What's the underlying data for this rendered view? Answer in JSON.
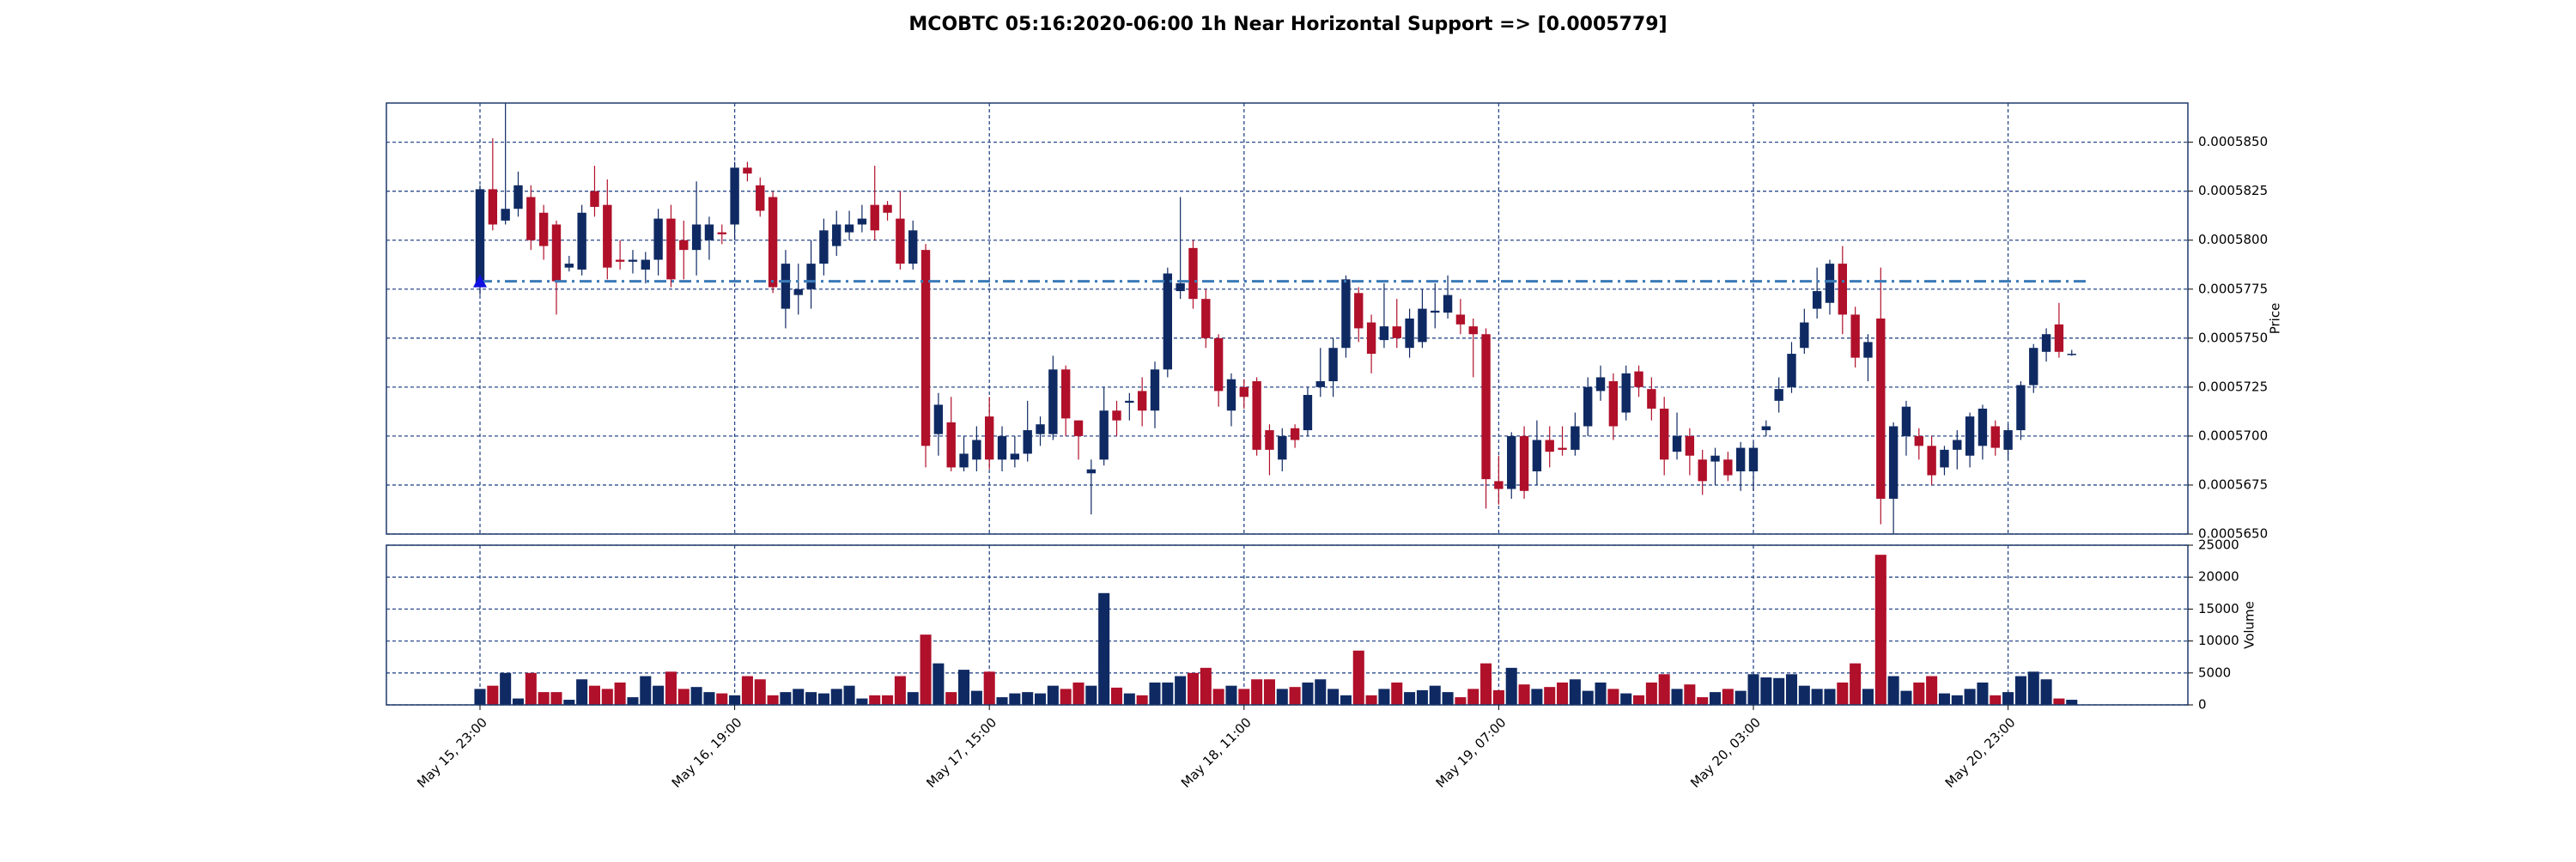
{
  "chart_data": {
    "type": "candlestick",
    "title": "MCOBTC 05:16:2020-06:00 1h Near Horizontal Support => [0.0005779]",
    "ylabel": "Price",
    "volume_label": "Volume",
    "support_level": 0.0005779,
    "up_color": "#0f2a63",
    "down_color": "#b0102a",
    "support_color": "#3b7ab8",
    "marker_color": "#1010e0",
    "grid_color": "#2b4a8a",
    "grid": true,
    "categories": [
      "May 15, 23:00",
      null,
      null,
      null,
      null,
      null,
      null,
      null,
      null,
      null,
      null,
      null,
      null,
      null,
      null,
      null,
      null,
      null,
      null,
      null,
      "May 16, 19:00",
      null,
      null,
      null,
      null,
      null,
      null,
      null,
      null,
      null,
      null,
      null,
      null,
      null,
      null,
      null,
      null,
      null,
      null,
      null,
      "May 17, 15:00",
      null,
      null,
      null,
      null,
      null,
      null,
      null,
      null,
      null,
      null,
      null,
      null,
      null,
      null,
      null,
      null,
      null,
      null,
      null,
      "May 18, 11:00",
      null,
      null,
      null,
      null,
      null,
      null,
      null,
      null,
      null,
      null,
      null,
      null,
      null,
      null,
      null,
      null,
      null,
      null,
      null,
      "May 19, 07:00",
      null,
      null,
      null,
      null,
      null,
      null,
      null,
      null,
      null,
      null,
      null,
      null,
      null,
      null,
      null,
      null,
      null,
      null,
      null,
      "May 20, 03:00",
      null,
      null,
      null,
      null,
      null,
      null,
      null,
      null,
      null,
      null,
      null,
      null,
      null,
      null,
      null,
      null,
      null,
      null,
      null,
      "May 20, 23:00",
      null,
      null,
      null,
      null,
      null
    ],
    "open": [
      0.0005776,
      0.0005826,
      0.000581,
      0.0005816,
      0.0005822,
      0.0005814,
      0.0005808,
      0.0005786,
      0.0005785,
      0.0005825,
      0.0005818,
      0.000579,
      0.0005789,
      0.0005785,
      0.000579,
      0.0005811,
      0.00058,
      0.0005795,
      0.00058,
      0.0005804,
      0.0005808,
      0.0005837,
      0.0005828,
      0.0005822,
      0.0005765,
      0.0005772,
      0.0005775,
      0.0005788,
      0.0005797,
      0.0005804,
      0.0005808,
      0.0005818,
      0.0005818,
      0.0005811,
      0.0005788,
      0.0005795,
      0.0005701,
      0.0005707,
      0.0005684,
      0.0005688,
      0.000571,
      0.0005688,
      0.0005688,
      0.0005691,
      0.0005701,
      0.0005701,
      0.0005734,
      0.0005708,
      0.0005681,
      0.0005688,
      0.0005713,
      0.0005717,
      0.0005723,
      0.0005713,
      0.0005734,
      0.0005774,
      0.0005796,
      0.000577,
      0.000575,
      0.0005713,
      0.0005725,
      0.0005728,
      0.0005703,
      0.0005688,
      0.0005704,
      0.0005703,
      0.0005725,
      0.0005728,
      0.0005745,
      0.0005773,
      0.0005758,
      0.0005749,
      0.0005756,
      0.0005745,
      0.0005748,
      0.0005763,
      0.0005763,
      0.0005762,
      0.0005756,
      0.0005752,
      0.0005677,
      0.0005673,
      0.00057,
      0.0005682,
      0.0005698,
      0.0005694,
      0.0005693,
      0.0005705,
      0.0005723,
      0.0005728,
      0.0005712,
      0.0005733,
      0.0005724,
      0.0005714,
      0.0005692,
      0.00057,
      0.0005688,
      0.0005687,
      0.0005688,
      0.0005682,
      0.0005682,
      0.0005703,
      0.0005718,
      0.0005725,
      0.0005745,
      0.0005765,
      0.0005768,
      0.0005788,
      0.0005762,
      0.000574,
      0.000576,
      0.0005668,
      0.00057,
      0.00057,
      0.0005695,
      0.0005684,
      0.0005693,
      0.000569,
      0.0005695,
      0.0005705,
      0.0005693,
      0.0005703,
      0.0005726,
      0.0005743,
      0.0005757,
      0.0005742
    ],
    "high": [
      0.0005828,
      0.0005852,
      0.000587,
      0.0005835,
      0.0005828,
      0.0005818,
      0.000581,
      0.0005792,
      0.0005818,
      0.0005838,
      0.0005831,
      0.00058,
      0.0005795,
      0.0005794,
      0.0005816,
      0.0005818,
      0.000581,
      0.000583,
      0.0005812,
      0.0005808,
      0.000584,
      0.000584,
      0.0005832,
      0.0005825,
      0.0005795,
      0.0005788,
      0.00058,
      0.0005811,
      0.0005815,
      0.0005815,
      0.0005818,
      0.0005838,
      0.000582,
      0.0005825,
      0.000581,
      0.0005798,
      0.0005722,
      0.000572,
      0.00057,
      0.0005705,
      0.000572,
      0.0005705,
      0.00057,
      0.0005718,
      0.000571,
      0.0005741,
      0.0005736,
      0.0005708,
      0.0005688,
      0.0005725,
      0.0005718,
      0.0005722,
      0.000573,
      0.0005738,
      0.0005786,
      0.0005822,
      0.00058,
      0.0005775,
      0.0005752,
      0.0005732,
      0.0005729,
      0.000573,
      0.0005706,
      0.0005704,
      0.0005706,
      0.0005725,
      0.0005745,
      0.000575,
      0.0005782,
      0.0005776,
      0.0005762,
      0.0005778,
      0.000577,
      0.0005765,
      0.0005775,
      0.0005778,
      0.0005782,
      0.000577,
      0.000576,
      0.0005755,
      0.000569,
      0.0005702,
      0.0005705,
      0.0005708,
      0.0005705,
      0.0005705,
      0.0005712,
      0.000573,
      0.0005736,
      0.0005732,
      0.0005736,
      0.0005736,
      0.000573,
      0.000572,
      0.0005712,
      0.0005704,
      0.0005693,
      0.0005694,
      0.0005692,
      0.0005697,
      0.0005697,
      0.0005708,
      0.000573,
      0.0005748,
      0.0005765,
      0.0005786,
      0.000579,
      0.0005797,
      0.0005766,
      0.0005752,
      0.0005786,
      0.0005707,
      0.0005718,
      0.0005704,
      0.00057,
      0.0005695,
      0.0005703,
      0.0005712,
      0.0005716,
      0.0005708,
      0.0005706,
      0.0005728,
      0.0005747,
      0.0005755,
      0.0005768,
      0.0005744
    ],
    "low": [
      0.0005772,
      0.0005805,
      0.0005808,
      0.0005812,
      0.0005795,
      0.000579,
      0.0005762,
      0.0005784,
      0.0005782,
      0.0005812,
      0.000578,
      0.0005785,
      0.0005783,
      0.0005778,
      0.0005782,
      0.0005776,
      0.000578,
      0.0005782,
      0.000579,
      0.0005798,
      0.00058,
      0.000583,
      0.0005812,
      0.0005773,
      0.0005755,
      0.0005762,
      0.0005765,
      0.0005782,
      0.0005792,
      0.00058,
      0.0005804,
      0.00058,
      0.000581,
      0.0005785,
      0.0005785,
      0.0005684,
      0.000569,
      0.0005682,
      0.0005682,
      0.0005682,
      0.0005683,
      0.0005682,
      0.0005684,
      0.0005687,
      0.0005695,
      0.0005698,
      0.00057,
      0.0005688,
      0.000566,
      0.0005685,
      0.00057,
      0.0005708,
      0.0005705,
      0.0005704,
      0.000573,
      0.000577,
      0.0005765,
      0.0005745,
      0.0005715,
      0.0005705,
      0.0005714,
      0.000569,
      0.000568,
      0.0005682,
      0.0005694,
      0.00057,
      0.000572,
      0.000572,
      0.000574,
      0.0005748,
      0.0005732,
      0.0005745,
      0.0005745,
      0.000574,
      0.0005745,
      0.0005755,
      0.000576,
      0.0005752,
      0.000573,
      0.0005663,
      0.0005665,
      0.0005668,
      0.0005668,
      0.0005675,
      0.0005684,
      0.000569,
      0.000569,
      0.00057,
      0.0005718,
      0.0005698,
      0.0005708,
      0.000572,
      0.0005708,
      0.000568,
      0.0005688,
      0.000568,
      0.000567,
      0.0005675,
      0.0005677,
      0.0005672,
      0.0005672,
      0.00057,
      0.0005712,
      0.0005722,
      0.0005742,
      0.000576,
      0.0005762,
      0.0005752,
      0.0005735,
      0.0005728,
      0.0005655,
      0.000565,
      0.000569,
      0.0005688,
      0.0005675,
      0.000568,
      0.0005683,
      0.0005684,
      0.0005688,
      0.000569,
      0.0005688,
      0.0005698,
      0.0005722,
      0.0005738,
      0.000574,
      0.0005741
    ],
    "close": [
      0.0005826,
      0.0005808,
      0.0005816,
      0.0005828,
      0.00058,
      0.0005797,
      0.0005779,
      0.0005788,
      0.0005814,
      0.0005817,
      0.0005786,
      0.0005789,
      0.000579,
      0.000579,
      0.0005811,
      0.000578,
      0.0005795,
      0.0005808,
      0.0005808,
      0.0005803,
      0.0005837,
      0.0005834,
      0.0005815,
      0.0005776,
      0.0005788,
      0.0005775,
      0.0005788,
      0.0005805,
      0.0005808,
      0.0005808,
      0.0005811,
      0.0005805,
      0.0005814,
      0.0005788,
      0.0005805,
      0.0005695,
      0.0005716,
      0.0005684,
      0.0005691,
      0.0005698,
      0.0005688,
      0.00057,
      0.0005691,
      0.0005703,
      0.0005706,
      0.0005734,
      0.0005709,
      0.00057,
      0.0005683,
      0.0005713,
      0.0005708,
      0.0005718,
      0.0005713,
      0.0005734,
      0.0005783,
      0.0005778,
      0.000577,
      0.000575,
      0.0005723,
      0.0005729,
      0.000572,
      0.0005693,
      0.0005693,
      0.00057,
      0.0005698,
      0.0005721,
      0.0005728,
      0.0005745,
      0.000578,
      0.0005755,
      0.0005742,
      0.0005756,
      0.000575,
      0.000576,
      0.0005765,
      0.0005764,
      0.0005772,
      0.0005757,
      0.0005752,
      0.0005678,
      0.0005673,
      0.00057,
      0.0005672,
      0.0005698,
      0.0005692,
      0.0005693,
      0.0005705,
      0.0005725,
      0.000573,
      0.0005705,
      0.0005732,
      0.0005725,
      0.0005714,
      0.0005688,
      0.00057,
      0.000569,
      0.0005677,
      0.000569,
      0.000568,
      0.0005694,
      0.0005694,
      0.0005705,
      0.0005724,
      0.0005742,
      0.0005758,
      0.0005774,
      0.0005788,
      0.0005762,
      0.000574,
      0.0005748,
      0.0005668,
      0.0005705,
      0.0005715,
      0.0005695,
      0.000568,
      0.0005693,
      0.0005698,
      0.000571,
      0.0005714,
      0.0005694,
      0.0005703,
      0.0005726,
      0.0005745,
      0.0005752,
      0.0005743,
      0.0005742
    ],
    "volume": [
      2500,
      3000,
      5000,
      1000,
      5000,
      2000,
      2000,
      800,
      4000,
      3000,
      2500,
      3500,
      1200,
      4500,
      3000,
      5200,
      2500,
      2800,
      2000,
      1800,
      1500,
      4500,
      4000,
      1500,
      2000,
      2500,
      2000,
      1800,
      2500,
      3000,
      1000,
      1500,
      1500,
      4500,
      2000,
      11000,
      6500,
      2000,
      5500,
      2200,
      5200,
      1200,
      1800,
      2000,
      1800,
      3000,
      2500,
      3500,
      3000,
      17500,
      2700,
      1800,
      1500,
      3500,
      3500,
      4500,
      5000,
      5800,
      2500,
      3000,
      2500,
      4000,
      4000,
      2500,
      2800,
      3500,
      4000,
      2500,
      1500,
      8500,
      1500,
      2500,
      3500,
      2000,
      2300,
      3000,
      2000,
      1200,
      2500,
      6500,
      2300,
      5800,
      3200,
      2500,
      2800,
      3500,
      4000,
      2200,
      3500,
      2500,
      1800,
      1500,
      3500,
      4800,
      2500,
      3200,
      1200,
      2000,
      2500,
      2200,
      4800,
      4300,
      4200,
      4800,
      3000,
      2500,
      2500,
      3500,
      6500,
      2500,
      23500,
      4500,
      2200,
      3500,
      4500,
      1800,
      1500,
      2500,
      3500,
      1500,
      2000,
      4500,
      5200,
      4000,
      1000,
      800
    ],
    "ylim": [
      0.000565,
      0.000587
    ],
    "yticks": [
      {
        "value": 0.000565,
        "label": "0.0005650"
      },
      {
        "value": 0.0005675,
        "label": "0.0005675"
      },
      {
        "value": 0.00057,
        "label": "0.0005700"
      },
      {
        "value": 0.0005725,
        "label": "0.0005725"
      },
      {
        "value": 0.000575,
        "label": "0.0005750"
      },
      {
        "value": 0.0005775,
        "label": "0.0005775"
      },
      {
        "value": 0.00058,
        "label": "0.0005800"
      },
      {
        "value": 0.0005825,
        "label": "0.0005825"
      },
      {
        "value": 0.000585,
        "label": "0.0005850"
      }
    ],
    "volume_ylim": [
      0,
      25000
    ],
    "volume_yticks": [
      0,
      5000,
      10000,
      15000,
      20000,
      25000
    ]
  }
}
